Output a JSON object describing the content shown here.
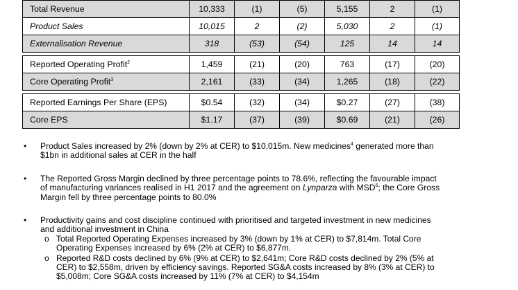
{
  "table": {
    "rows": [
      {
        "label": "Total Revenue",
        "cells": [
          "10,333",
          "(1)",
          "(5)",
          "5,155",
          "2",
          "(1)"
        ],
        "style": "grey"
      },
      {
        "label": "Product Sales",
        "cells": [
          "10,015",
          "2",
          "(2)",
          "5,030",
          "2",
          "(1)"
        ],
        "style": "italic"
      },
      {
        "label": "Externalisation Revenue",
        "cells": [
          "318",
          "(53)",
          "(54)",
          "125",
          "14",
          "14"
        ],
        "style": "grey-italic"
      },
      {
        "label": "Reported Operating Profit",
        "sup": "2",
        "cells": [
          "1,459",
          "(21)",
          "(20)",
          "763",
          "(17)",
          "(20)"
        ],
        "style": "plain",
        "gap": true
      },
      {
        "label": "Core Operating Profit",
        "sup": "3",
        "cells": [
          "2,161",
          "(33)",
          "(34)",
          "1,265",
          "(18)",
          "(22)"
        ],
        "style": "grey"
      },
      {
        "label": "Reported Earnings Per Share (EPS)",
        "cells": [
          "$0.54",
          "(32)",
          "(34)",
          "$0.27",
          "(27)",
          "(38)"
        ],
        "style": "plain",
        "gap": true
      },
      {
        "label": "Core EPS",
        "cells": [
          "$1.17",
          "(37)",
          "(39)",
          "$0.69",
          "(21)",
          "(26)"
        ],
        "style": "grey"
      }
    ]
  },
  "bullets": {
    "b1": {
      "bullet": "•",
      "l1a": "Product Sales increased by 2% (down by 2% at CER) to $10,015m. New medicines",
      "l1sup": "4",
      "l1b": " generated more than",
      "l2": "$1bn in additional sales at CER in the half"
    },
    "b2": {
      "bullet": "•",
      "l1": "The Reported Gross Margin declined by three percentage points to 78.6%, reflecting the favourable impact",
      "l2a": "of manufacturing variances realised in H1 2017 and the agreement on ",
      "l2em": "Lynparza",
      "l2b": " with MSD",
      "l2sup": "5",
      "l2c": "; the Core Gross",
      "l3": "Margin fell by three percentage points to 80.0%"
    },
    "b3": {
      "bullet": "•",
      "l1": "Productivity gains and cost discipline continued with prioritised and targeted investment in new medicines",
      "l2": "and additional investment in China"
    }
  },
  "subbullets": {
    "s1": {
      "mark": "o",
      "l1": "Total Reported Operating Expenses increased by 3% (down by 1% at CER) to $7,814m. Total Core",
      "l2": "Operating Expenses increased by 6% (2% at CER) to $6,877m."
    },
    "s2": {
      "mark": "o",
      "l1": "Reported R&D costs declined by 6% (9% at CER) to $2,641m; Core R&D costs declined by 2% (5% at",
      "l2": "CER) to $2,558m, driven by efficiency savings. Reported SG&A costs increased by 8% (3% at CER) to",
      "l3": "$5,008m; Core SG&A costs increased by 11% (7% at CER) to $4,154m"
    }
  }
}
